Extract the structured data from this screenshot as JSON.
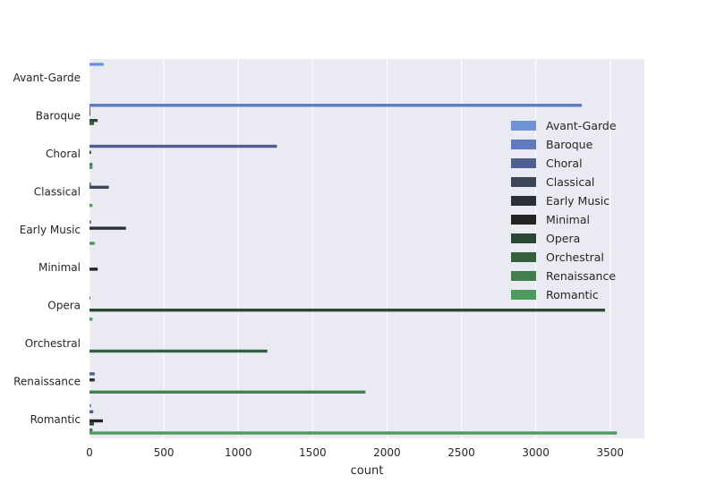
{
  "chart_data": {
    "type": "bar",
    "orientation": "horizontal",
    "title": "",
    "xlabel": "count",
    "ylabel": "",
    "xlim": [
      0,
      3730
    ],
    "xticks": [
      0,
      500,
      1000,
      1500,
      2000,
      2500,
      3000,
      3500
    ],
    "grid": true,
    "legend_position": "right",
    "categories": [
      "Avant-Garde",
      "Baroque",
      "Choral",
      "Classical",
      "Early Music",
      "Minimal",
      "Opera",
      "Orchestral",
      "Renaissance",
      "Romantic"
    ],
    "series": [
      {
        "name": "Avant-Garde",
        "color": "#7092D8",
        "values": [
          95,
          0,
          0,
          0,
          0,
          0,
          0,
          0,
          0,
          12
        ]
      },
      {
        "name": "Baroque",
        "color": "#5F7BC0",
        "values": [
          0,
          3310,
          0,
          0,
          0,
          0,
          0,
          0,
          0,
          0
        ]
      },
      {
        "name": "Choral",
        "color": "#4F5F8F",
        "values": [
          0,
          5,
          1260,
          10,
          10,
          0,
          5,
          0,
          35,
          25
        ]
      },
      {
        "name": "Classical",
        "color": "#3B4659",
        "values": [
          0,
          5,
          0,
          130,
          0,
          0,
          0,
          0,
          0,
          0
        ]
      },
      {
        "name": "Early Music",
        "color": "#2C2F38",
        "values": [
          0,
          5,
          10,
          0,
          245,
          0,
          0,
          0,
          35,
          0
        ]
      },
      {
        "name": "Minimal",
        "color": "#222422",
        "values": [
          0,
          0,
          0,
          0,
          0,
          55,
          0,
          0,
          0,
          90
        ]
      },
      {
        "name": "Opera",
        "color": "#2E4636",
        "values": [
          0,
          55,
          0,
          0,
          0,
          0,
          3465,
          0,
          0,
          30
        ]
      },
      {
        "name": "Orchestral",
        "color": "#33603D",
        "values": [
          0,
          30,
          0,
          0,
          0,
          0,
          0,
          1195,
          0,
          0
        ]
      },
      {
        "name": "Renaissance",
        "color": "#427F4F",
        "values": [
          0,
          0,
          20,
          0,
          0,
          0,
          0,
          0,
          1855,
          20
        ]
      },
      {
        "name": "Romantic",
        "color": "#4E9A5F",
        "values": [
          0,
          0,
          20,
          20,
          35,
          0,
          20,
          0,
          0,
          3545
        ]
      }
    ]
  }
}
